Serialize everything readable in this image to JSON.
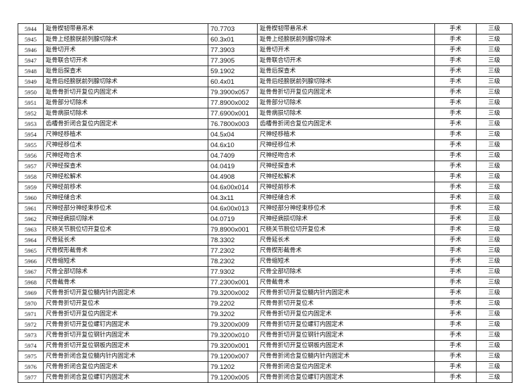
{
  "rows": [
    [
      "5944",
      "趾骨楔韧带悬吊术",
      "70.7703",
      "趾骨楔韧带悬吊术",
      "手术",
      "三级"
    ],
    [
      "5945",
      "趾骨上经膀胱前列腺切除术",
      "60.3x01",
      "趾骨上经膀胱前列腺切除术",
      "手术",
      "三级"
    ],
    [
      "5946",
      "趾骨切开术",
      "77.3903",
      "趾骨切开术",
      "手术",
      "三级"
    ],
    [
      "5947",
      "趾骨联合切开术",
      "77.3905",
      "趾骨联合切开术",
      "手术",
      "三级"
    ],
    [
      "5948",
      "趾骨后探查术",
      "59.1902",
      "趾骨后探查术",
      "手术",
      "三级"
    ],
    [
      "5949",
      "趾骨后经膀胱前列腺切除术",
      "60.4x01",
      "趾骨后经膀胱前列腺切除术",
      "手术",
      "三级"
    ],
    [
      "5950",
      "趾骨骨折切开复位内固定术",
      "79.3900x057",
      "趾骨骨折切开复位内固定术",
      "手术",
      "三级"
    ],
    [
      "5951",
      "趾骨部分切除术",
      "77.8900x002",
      "趾骨部分切除术",
      "手术",
      "三级"
    ],
    [
      "5952",
      "趾骨病损切除术",
      "77.6900x001",
      "趾骨病损切除术",
      "手术",
      "三级"
    ],
    [
      "5953",
      "齿槽骨折闭合复位内固定术",
      "76.7800x003",
      "齿槽骨折闭合复位内固定术",
      "手术",
      "三级"
    ],
    [
      "5954",
      "尺神经移植术",
      "04.5x04",
      "尺神经移植术",
      "手术",
      "三级"
    ],
    [
      "5955",
      "尺神经移位术",
      "04.6x10",
      "尺神经移位术",
      "手术",
      "三级"
    ],
    [
      "5956",
      "尺神经吻合术",
      "04.7409",
      "尺神经吻合术",
      "手术",
      "三级"
    ],
    [
      "5957",
      "尺神经探查术",
      "04.0419",
      "尺神经探查术",
      "手术",
      "三级"
    ],
    [
      "5958",
      "尺神经松解术",
      "04.4908",
      "尺神经松解术",
      "手术",
      "三级"
    ],
    [
      "5959",
      "尺神经前移术",
      "04.6x00x014",
      "尺神经前移术",
      "手术",
      "三级"
    ],
    [
      "5960",
      "尺神经缝合术",
      "04.3x11",
      "尺神经缝合术",
      "手术",
      "三级"
    ],
    [
      "5961",
      "尺神经部分神经束移位术",
      "04.6x00x013",
      "尺神经部分神经束移位术",
      "手术",
      "三级"
    ],
    [
      "5962",
      "尺神经病损切除术",
      "04.0719",
      "尺神经病损切除术",
      "手术",
      "三级"
    ],
    [
      "5963",
      "尺桡关节脱位切开复位术",
      "79.8900x001",
      "尺桡关节脱位切开复位术",
      "手术",
      "三级"
    ],
    [
      "5964",
      "尺骨延长术",
      "78.3302",
      "尺骨延长术",
      "手术",
      "三级"
    ],
    [
      "5965",
      "尺骨楔形截骨术",
      "77.2302",
      "尺骨楔形截骨术",
      "手术",
      "三级"
    ],
    [
      "5966",
      "尺骨缩短术",
      "78.2302",
      "尺骨缩短术",
      "手术",
      "三级"
    ],
    [
      "5967",
      "尺骨全部切除术",
      "77.9302",
      "尺骨全部切除术",
      "手术",
      "三级"
    ],
    [
      "5968",
      "尺骨截骨术",
      "77.2300x001",
      "尺骨截骨术",
      "手术",
      "三级"
    ],
    [
      "5969",
      "尺骨骨折切开复位髓内针内固定术",
      "79.3200x002",
      "尺骨骨折切开复位髓内针内固定术",
      "手术",
      "三级"
    ],
    [
      "5970",
      "尺骨骨折切开复位术",
      "79.2202",
      "尺骨骨折切开复位术",
      "手术",
      "三级"
    ],
    [
      "5971",
      "尺骨骨折切开复位内固定术",
      "79.3202",
      "尺骨骨折切开复位内固定术",
      "手术",
      "三级"
    ],
    [
      "5972",
      "尺骨骨折切开复位螺钉内固定术",
      "79.3200x009",
      "尺骨骨折切开复位螺钉内固定术",
      "手术",
      "三级"
    ],
    [
      "5973",
      "尺骨骨折切开复位钢针内固定术",
      "79.3200x010",
      "尺骨骨折切开复位钢针内固定术",
      "手术",
      "三级"
    ],
    [
      "5974",
      "尺骨骨折切开复位钢板内固定术",
      "79.3200x001",
      "尺骨骨折切开复位钢板内固定术",
      "手术",
      "三级"
    ],
    [
      "5975",
      "尺骨骨折闭合复位髓内针内固定术",
      "79.1200x007",
      "尺骨骨折闭合复位髓内针内固定术",
      "手术",
      "三级"
    ],
    [
      "5976",
      "尺骨骨折闭合复位内固定术",
      "79.1202",
      "尺骨骨折闭合复位内固定术",
      "手术",
      "三级"
    ],
    [
      "5977",
      "尺骨骨折闭合复位螺钉内固定术",
      "79.1200x005",
      "尺骨骨折闭合复位螺钉内固定术",
      "手术",
      "三级"
    ]
  ]
}
